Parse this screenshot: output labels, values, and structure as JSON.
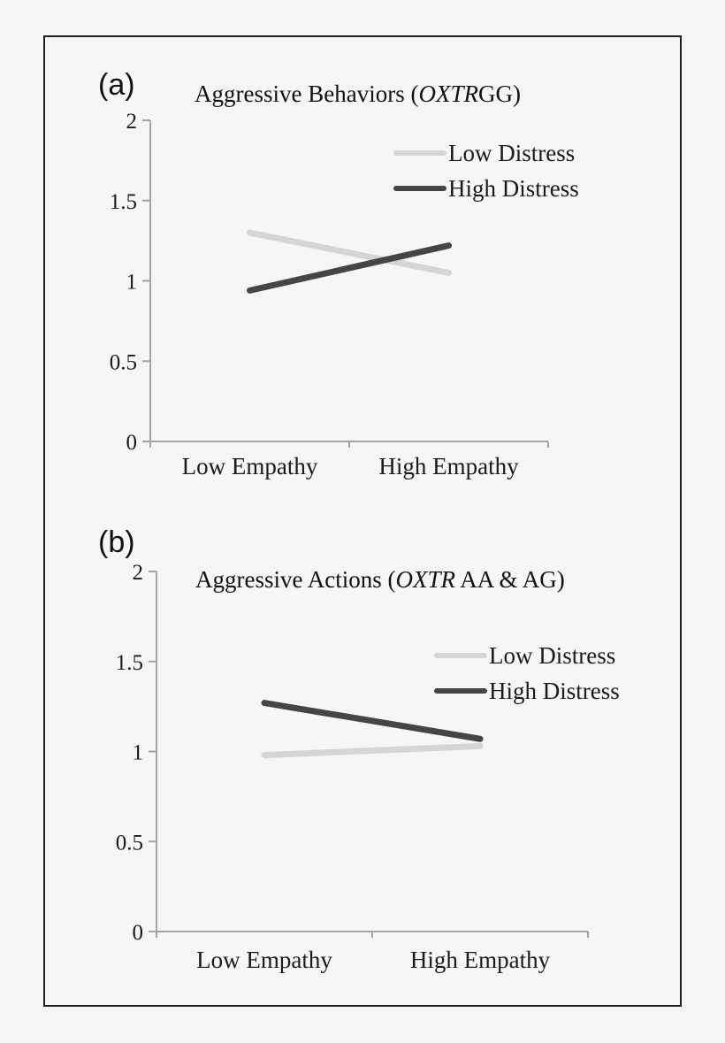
{
  "figure": {
    "bg": "#f5f5f3",
    "border_color": "#1f1f1f"
  },
  "colors": {
    "axis": "#a3a3a3",
    "text": "#1a1a1a",
    "low_distress": "#d5d5d5",
    "high_distress": "#454545"
  },
  "panels": [
    {
      "label": "(a)",
      "title": {
        "prefix": "Aggressive Behaviors (",
        "italic": "OXTR",
        "suffix": "GG)"
      }
    },
    {
      "label": "(b)",
      "title": {
        "prefix": "Aggressive Actions (",
        "italic": "OXTR",
        "suffix": " AA & AG)"
      }
    }
  ],
  "chart_data": [
    {
      "type": "line",
      "title": "Aggressive Behaviors (OXTRGG)",
      "categories": [
        "Low Empathy",
        "High Empathy"
      ],
      "series": [
        {
          "name": "Low Distress",
          "values": [
            1.3,
            1.05
          ],
          "color": "#d5d5d5"
        },
        {
          "name": "High Distress",
          "values": [
            0.94,
            1.22
          ],
          "color": "#454545"
        }
      ],
      "xlabel": "",
      "ylabel": "",
      "ylim": [
        0,
        2
      ],
      "yticks": [
        0,
        0.5,
        1,
        1.5,
        2
      ],
      "ytick_labels": [
        "0",
        "0.5",
        "1",
        "1.5",
        "2"
      ],
      "grid": false,
      "legend_position": "inside-upper-right"
    },
    {
      "type": "line",
      "title": "Aggressive Actions (OXTR AA & AG)",
      "categories": [
        "Low Empathy",
        "High Empathy"
      ],
      "series": [
        {
          "name": "Low Distress",
          "values": [
            0.98,
            1.03
          ],
          "color": "#d5d5d5"
        },
        {
          "name": "High Distress",
          "values": [
            1.27,
            1.07
          ],
          "color": "#454545"
        }
      ],
      "xlabel": "",
      "ylabel": "",
      "ylim": [
        0,
        2
      ],
      "yticks": [
        0,
        0.5,
        1,
        1.5,
        2
      ],
      "ytick_labels": [
        "0",
        "0.5",
        "1",
        "1.5",
        "2"
      ],
      "grid": false,
      "legend_position": "inside-upper-right"
    }
  ]
}
